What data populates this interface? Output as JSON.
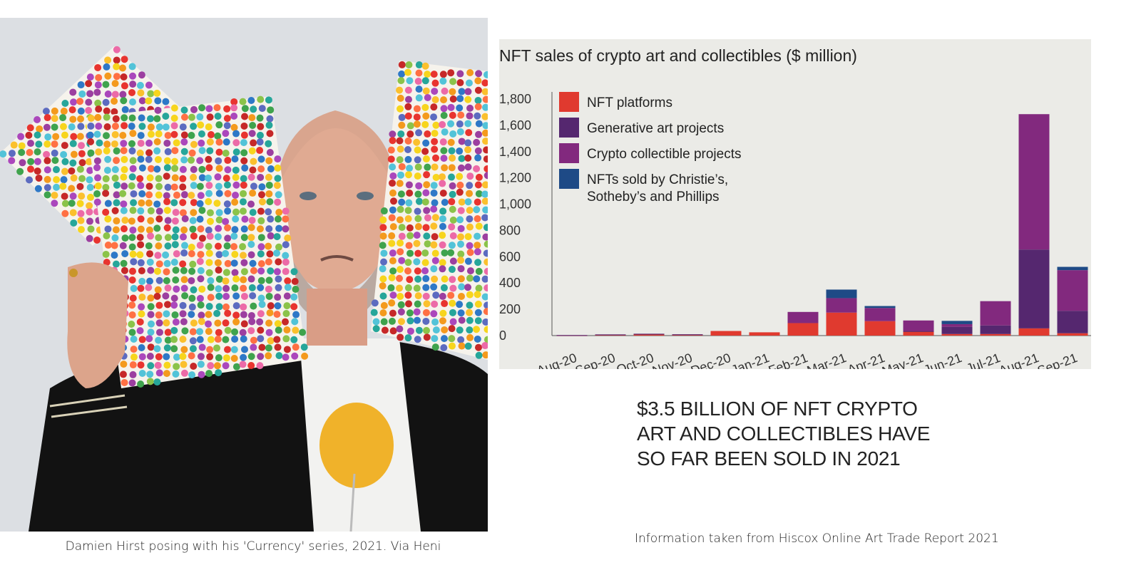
{
  "photo": {
    "caption": "Damien Hirst posing with his 'Currency' series, 2021. Via Heni"
  },
  "chart_data": {
    "type": "bar",
    "stacked": true,
    "title": "NFT sales of crypto art and collectibles ($ million)",
    "categories": [
      "Aug-20",
      "Sep-20",
      "Oct-20",
      "Nov-20",
      "Dec-20",
      "Jan-21",
      "Feb-21",
      "Mar-21",
      "Apr-21",
      "May-21",
      "Jun-21",
      "Jul-21",
      "Aug-21",
      "Sep-21"
    ],
    "ylim": [
      0,
      1800
    ],
    "yticks": [
      "0",
      "200",
      "400",
      "600",
      "800",
      "1,000",
      "1,200",
      "1,400",
      "1,600",
      "1,800"
    ],
    "ytick_values": [
      0,
      200,
      400,
      600,
      800,
      1000,
      1200,
      1400,
      1600,
      1800
    ],
    "legend_position": "top-left",
    "series": [
      {
        "name": "NFT platforms",
        "color": "#e03a2f",
        "values": [
          3,
          6,
          12,
          8,
          35,
          25,
          95,
          175,
          110,
          30,
          12,
          12,
          55,
          18
        ]
      },
      {
        "name": "Generative art projects",
        "color": "#55276f",
        "values": [
          1,
          3,
          2,
          2,
          0,
          0,
          0,
          0,
          0,
          5,
          55,
          65,
          600,
          170
        ]
      },
      {
        "name": "Crypto collectible projects",
        "color": "#82297e",
        "values": [
          0,
          0,
          0,
          0,
          0,
          0,
          85,
          110,
          100,
          80,
          20,
          185,
          1030,
          310
        ]
      },
      {
        "name": "NFTs sold by Christie’s, Sotheby’s and Phillips",
        "color": "#1e4a86",
        "values": [
          0,
          0,
          0,
          0,
          0,
          0,
          0,
          65,
          15,
          0,
          25,
          0,
          0,
          25
        ]
      }
    ]
  },
  "headline": {
    "lines": [
      "$3.5 BILLION OF NFT CRYPTO",
      "ART AND COLLECTIBLES HAVE",
      "SO FAR BEEN SOLD IN 2021"
    ]
  },
  "source_note": "Information taken from Hiscox Online Art Trade Report 2021",
  "colors": {
    "panel_bg": "#ebebe7",
    "text": "#222222"
  }
}
